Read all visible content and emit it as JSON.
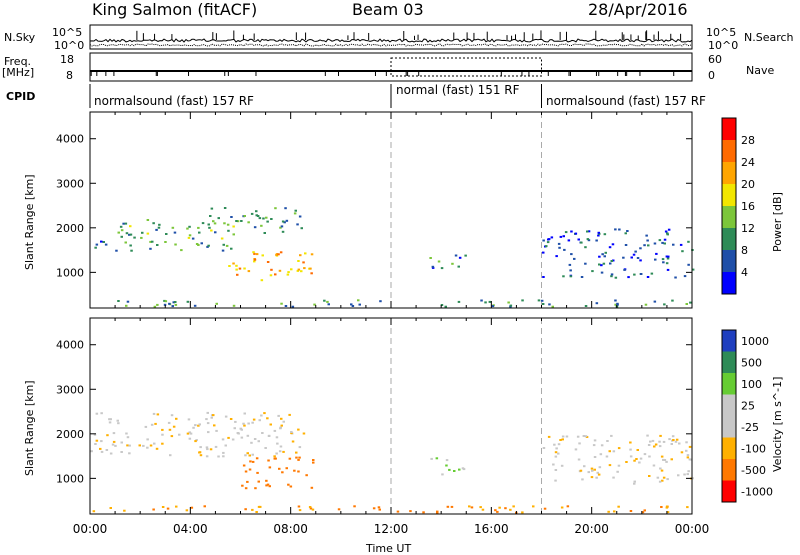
{
  "header": {
    "station": "King Salmon (fitACF)",
    "beam": "Beam 03",
    "date": "28/Apr/2016"
  },
  "strip_labels": {
    "nsky": "N.Sky",
    "freq_top": "Freq.",
    "freq_unit": "[MHz]",
    "cpid": "CPID",
    "nsearch": "N.Search",
    "nave": "Nave",
    "nsky_ticks": [
      "10^5",
      "10^0"
    ],
    "nsearch_ticks": [
      "10^5",
      "10^0"
    ],
    "freq_ticks": [
      "18",
      "8"
    ],
    "nave_ticks": [
      "60",
      "0"
    ]
  },
  "cpid_segments": [
    {
      "label": "normalsound (fast) 157 RF",
      "start_hour": 0,
      "end_hour": 12
    },
    {
      "label": "normal (fast) 151 RF",
      "start_hour": 12,
      "end_hour": 18
    },
    {
      "label": "normalsound (fast) 157 RF",
      "start_hour": 18,
      "end_hour": 24
    }
  ],
  "chart_data": [
    {
      "type": "heatmap",
      "title": "",
      "ylabel": "Slant Range [km]",
      "xlabel": "",
      "ylim": [
        200,
        4600
      ],
      "yticks": [
        1000,
        2000,
        3000,
        4000
      ],
      "xlim": [
        0,
        24
      ],
      "colorbar": {
        "label": "Power [dB]",
        "ticks": [
          4,
          8,
          12,
          16,
          20,
          24,
          28
        ],
        "colors": [
          "#0000ff",
          "#1f4fa8",
          "#2e8b57",
          "#7cc63a",
          "#f2e600",
          "#ffa500",
          "#ff6a00",
          "#ff0000"
        ]
      },
      "echo_regions": [
        {
          "from_hour": 0.0,
          "to_hour": 1.0,
          "range_km": [
            1500,
            1800
          ],
          "power_db": 8
        },
        {
          "from_hour": 1.0,
          "to_hour": 6.0,
          "range_km": [
            1500,
            2200
          ],
          "power_db": 12
        },
        {
          "from_hour": 4.5,
          "to_hour": 8.5,
          "range_km": [
            1900,
            2500
          ],
          "power_db": 10
        },
        {
          "from_hour": 5.5,
          "to_hour": 9.0,
          "range_km": [
            800,
            1500
          ],
          "power_db": 22
        },
        {
          "from_hour": 13.5,
          "to_hour": 15.0,
          "range_km": [
            1100,
            1500
          ],
          "power_db": 8
        },
        {
          "from_hour": 18.0,
          "to_hour": 24.0,
          "range_km": [
            900,
            2000
          ],
          "power_db": 6
        },
        {
          "from_hour": 0.0,
          "to_hour": 24.0,
          "range_km": [
            250,
            400
          ],
          "power_db": 10
        }
      ]
    },
    {
      "type": "heatmap",
      "title": "",
      "ylabel": "Slant Range [km]",
      "xlabel": "Time UT",
      "ylim": [
        200,
        4600
      ],
      "yticks": [
        1000,
        2000,
        3000,
        4000
      ],
      "xlim": [
        0,
        24
      ],
      "xticks": [
        "00:00",
        "04:00",
        "08:00",
        "12:00",
        "16:00",
        "20:00",
        "00:00"
      ],
      "colorbar": {
        "label": "Velocity [m s^-1]",
        "ticks": [
          1000,
          500,
          100,
          25,
          -25,
          -100,
          -500,
          -1000
        ],
        "colors": [
          "#1f3fbf",
          "#2e8b57",
          "#66cc33",
          "#c8c8c8",
          "#c8c8c8",
          "#ffb000",
          "#ff7800",
          "#ff0000"
        ]
      },
      "echo_regions": [
        {
          "from_hour": 0.0,
          "to_hour": 8.5,
          "range_km": [
            1500,
            2500
          ],
          "velocity": 0
        },
        {
          "from_hour": 6.0,
          "to_hour": 9.0,
          "range_km": [
            800,
            1500
          ],
          "velocity": -300
        },
        {
          "from_hour": 13.5,
          "to_hour": 15.0,
          "range_km": [
            1100,
            1500
          ],
          "velocity": 100
        },
        {
          "from_hour": 18.0,
          "to_hour": 24.0,
          "range_km": [
            900,
            2000
          ],
          "velocity": 0
        },
        {
          "from_hour": 0.0,
          "to_hour": 24.0,
          "range_km": [
            250,
            400
          ],
          "velocity": -100
        }
      ]
    }
  ]
}
